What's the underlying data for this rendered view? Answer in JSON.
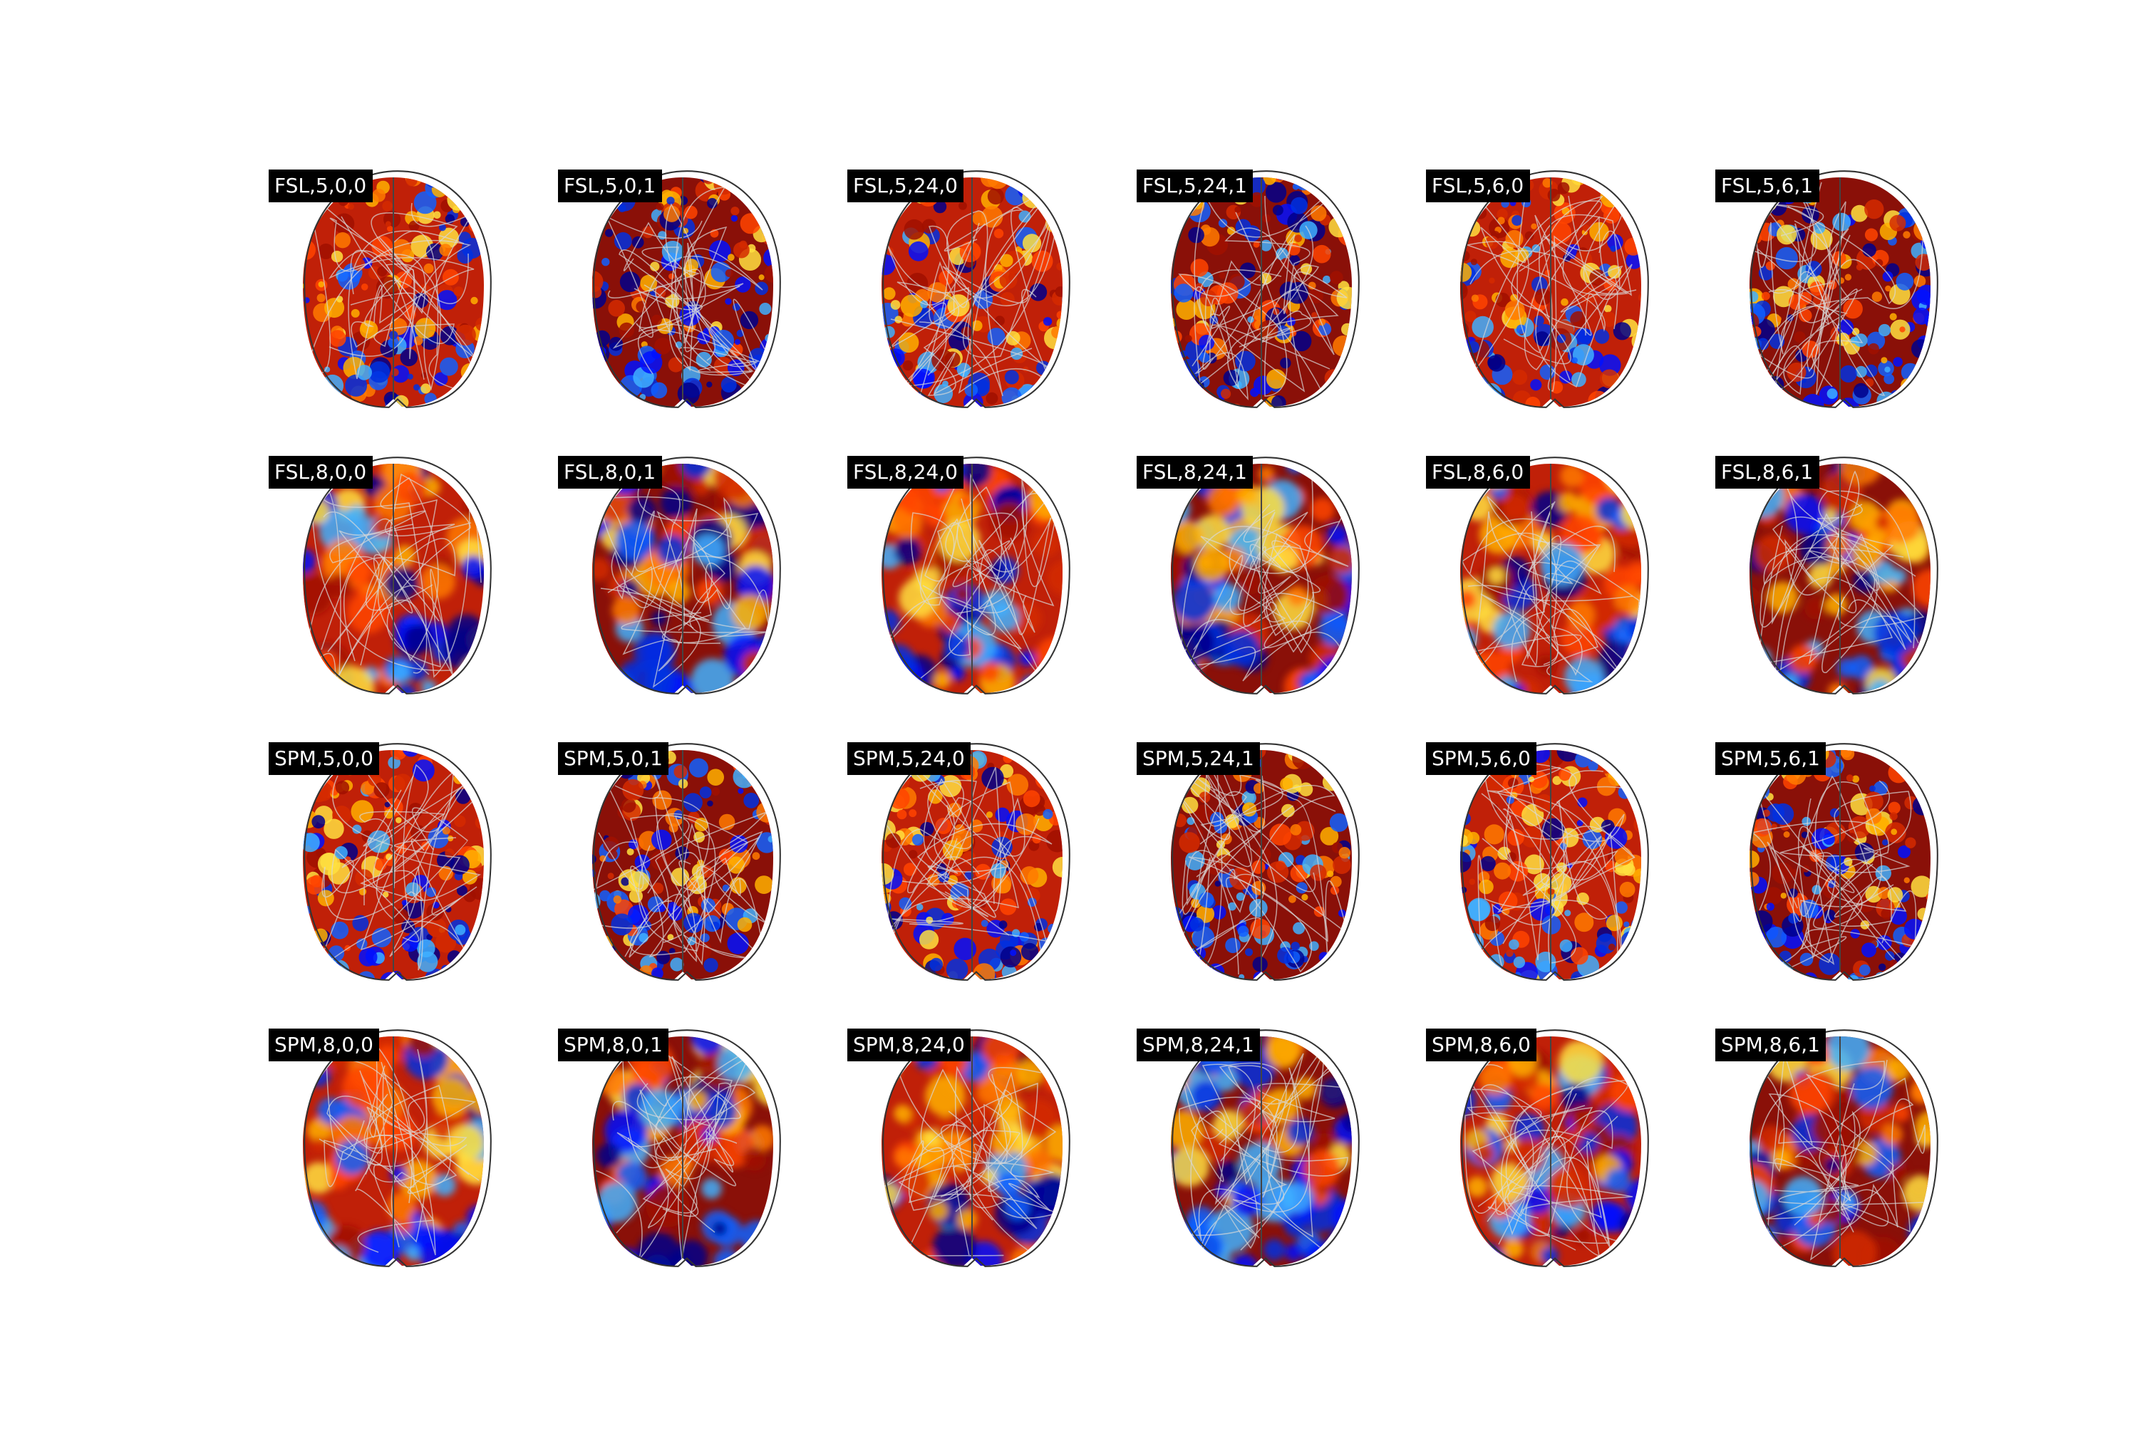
{
  "panels": {
    "rows": [
      [
        "FSL,5,0,0",
        "FSL,5,0,1",
        "FSL,5,24,0",
        "FSL,5,24,1",
        "FSL,5,6,0",
        "FSL,5,6,1"
      ],
      [
        "FSL,8,0,0",
        "FSL,8,0,1",
        "FSL,8,24,0",
        "FSL,8,24,1",
        "FSL,8,6,0",
        "FSL,8,6,1"
      ],
      [
        "SPM,5,0,0",
        "SPM,5,0,1",
        "SPM,5,24,0",
        "SPM,5,24,1",
        "SPM,5,6,0",
        "SPM,5,6,1"
      ],
      [
        "SPM,8,0,0",
        "SPM,8,0,1",
        "SPM,8,24,0",
        "SPM,8,24,1",
        "SPM,8,6,0",
        "SPM,8,6,1"
      ]
    ]
  }
}
